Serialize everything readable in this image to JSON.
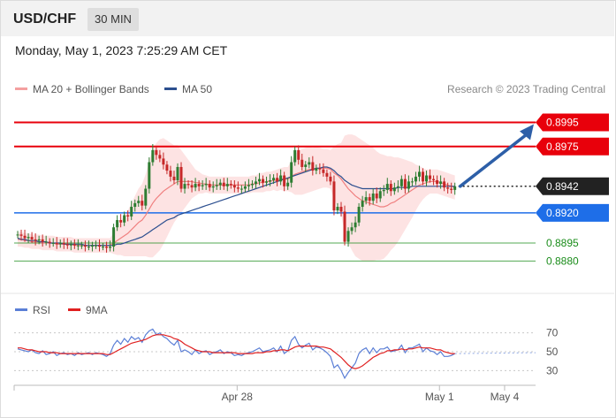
{
  "header": {
    "symbol": "USD/CHF",
    "interval": "30 MIN",
    "datetime": "Monday, May 1, 2023 7:25:29 AM CET"
  },
  "legend": {
    "ma20_label": "MA 20 + Bollinger Bands",
    "ma50_label": "MA 50",
    "credit": "Research © 2023 Trading Central",
    "rsi_label": "RSI",
    "rsi_ma_label": "9MA"
  },
  "colors": {
    "resistance": "#e8000b",
    "support": "#1e6ee8",
    "target_green": "#1a8c1a",
    "last_price": "#222222",
    "arrow": "#2d5fa8",
    "band_fill": "#fde0e0",
    "ma20": "#f08080",
    "ma50": "#2c4f8f",
    "rsi": "#5b7fd6",
    "rsi_ma": "#e02020",
    "candle_up": "#2e7d32",
    "candle_down": "#c62828"
  },
  "chart_data": {
    "type": "candlestick",
    "levels": [
      {
        "name": "resistance-2",
        "value": 0.8995,
        "label": "0.8995",
        "style": "red-box"
      },
      {
        "name": "resistance-1",
        "value": 0.8975,
        "label": "0.8975",
        "style": "red-box"
      },
      {
        "name": "last-price",
        "value": 0.8942,
        "label": "0.8942",
        "style": "black-box"
      },
      {
        "name": "pivot",
        "value": 0.892,
        "label": "0.8920",
        "style": "blue-box"
      },
      {
        "name": "support-1",
        "value": 0.8895,
        "label": "0.8895",
        "style": "green-text"
      },
      {
        "name": "support-2",
        "value": 0.888,
        "label": "0.8880",
        "style": "green-text"
      }
    ],
    "price_ylim": [
      0.8862,
      0.901
    ],
    "x_labels": [
      {
        "label": "Apr 28",
        "index": 64
      },
      {
        "label": "May 1",
        "index": 123
      },
      {
        "label": "May 4",
        "index": 142
      }
    ],
    "x_range": [
      0,
      150
    ],
    "close": [
      0.8902,
      0.8901,
      0.8899,
      0.89,
      0.8898,
      0.8897,
      0.8898,
      0.8896,
      0.8896,
      0.8895,
      0.8895,
      0.8894,
      0.8895,
      0.8894,
      0.8893,
      0.8894,
      0.8893,
      0.8893,
      0.8893,
      0.8892,
      0.8892,
      0.8893,
      0.8893,
      0.8892,
      0.8892,
      0.8891,
      0.8892,
      0.8908,
      0.8914,
      0.8912,
      0.8918,
      0.8917,
      0.8925,
      0.8928,
      0.893,
      0.8926,
      0.894,
      0.8962,
      0.8972,
      0.8968,
      0.8965,
      0.896,
      0.8955,
      0.895,
      0.8947,
      0.8958,
      0.894,
      0.8944,
      0.8943,
      0.8941,
      0.8944,
      0.8942,
      0.8943,
      0.8944,
      0.8941,
      0.8942,
      0.8943,
      0.8945,
      0.8942,
      0.8944,
      0.8943,
      0.8941,
      0.894,
      0.894,
      0.8942,
      0.8943,
      0.8944,
      0.8946,
      0.8948,
      0.8945,
      0.8946,
      0.8947,
      0.8949,
      0.8946,
      0.8951,
      0.8942,
      0.8945,
      0.8962,
      0.8972,
      0.8964,
      0.8958,
      0.896,
      0.8962,
      0.8955,
      0.8957,
      0.8956,
      0.8953,
      0.895,
      0.8946,
      0.8922,
      0.8925,
      0.8921,
      0.8896,
      0.8905,
      0.8908,
      0.8912,
      0.8925,
      0.893,
      0.8933,
      0.893,
      0.8936,
      0.8932,
      0.8938,
      0.8939,
      0.8944,
      0.8938,
      0.8941,
      0.8942,
      0.8948,
      0.894,
      0.8946,
      0.8946,
      0.895,
      0.8954,
      0.8946,
      0.8951,
      0.8948,
      0.8947,
      0.8944,
      0.8946,
      0.8941,
      0.894,
      0.8939,
      0.8942
    ],
    "ma20": [
      0.8898,
      0.8898,
      0.8897,
      0.8897,
      0.8896,
      0.8896,
      0.8896,
      0.8895,
      0.8895,
      0.8895,
      0.8895,
      0.8894,
      0.8894,
      0.8894,
      0.8894,
      0.8894,
      0.8893,
      0.8893,
      0.8893,
      0.8893,
      0.8893,
      0.8893,
      0.8893,
      0.8893,
      0.8893,
      0.8893,
      0.8893,
      0.8895,
      0.8897,
      0.8899,
      0.8901,
      0.8903,
      0.8906,
      0.8909,
      0.8912,
      0.8914,
      0.8918,
      0.8923,
      0.8928,
      0.8932,
      0.8935,
      0.8938,
      0.894,
      0.8942,
      0.8944,
      0.8946,
      0.8946,
      0.8946,
      0.8946,
      0.8946,
      0.8945,
      0.8945,
      0.8944,
      0.8944,
      0.8943,
      0.8943,
      0.8943,
      0.8943,
      0.8943,
      0.8943,
      0.8943,
      0.8943,
      0.8943,
      0.8943,
      0.8943,
      0.8943,
      0.8944,
      0.8944,
      0.8945,
      0.8945,
      0.8946,
      0.8946,
      0.8947,
      0.8947,
      0.8948,
      0.8948,
      0.8948,
      0.895,
      0.8952,
      0.8953,
      0.8954,
      0.8955,
      0.8956,
      0.8956,
      0.8957,
      0.8957,
      0.8957,
      0.8957,
      0.8956,
      0.8953,
      0.8951,
      0.8948,
      0.8944,
      0.894,
      0.8937,
      0.8934,
      0.8932,
      0.893,
      0.8929,
      0.8928,
      0.8927,
      0.8926,
      0.8925,
      0.8925,
      0.8926,
      0.8928,
      0.8929,
      0.8931,
      0.8933,
      0.8935,
      0.8937,
      0.8939,
      0.8941,
      0.8943,
      0.8944,
      0.8945,
      0.8946,
      0.8946,
      0.8946,
      0.8945,
      0.8944,
      0.8943,
      0.8942,
      0.8941
    ],
    "band_half_width": [
      0.0006,
      0.0006,
      0.0006,
      0.0006,
      0.0006,
      0.0006,
      0.0006,
      0.0006,
      0.0006,
      0.0006,
      0.0006,
      0.0006,
      0.0006,
      0.0006,
      0.0006,
      0.0006,
      0.0006,
      0.0006,
      0.0006,
      0.0006,
      0.0006,
      0.0006,
      0.0006,
      0.0006,
      0.0006,
      0.0006,
      0.0006,
      0.0009,
      0.0012,
      0.0014,
      0.0017,
      0.0019,
      0.0022,
      0.0025,
      0.0028,
      0.003,
      0.0034,
      0.004,
      0.0045,
      0.0046,
      0.0046,
      0.0044,
      0.004,
      0.0036,
      0.0032,
      0.003,
      0.0026,
      0.0022,
      0.0018,
      0.0014,
      0.0011,
      0.0009,
      0.0008,
      0.0007,
      0.0007,
      0.0007,
      0.0007,
      0.0007,
      0.0007,
      0.0007,
      0.0007,
      0.0007,
      0.0007,
      0.0007,
      0.0007,
      0.0007,
      0.0007,
      0.0007,
      0.0008,
      0.0008,
      0.0008,
      0.0008,
      0.0008,
      0.0009,
      0.0009,
      0.001,
      0.001,
      0.0013,
      0.0017,
      0.0018,
      0.0019,
      0.0019,
      0.0019,
      0.0018,
      0.0018,
      0.0017,
      0.0016,
      0.0016,
      0.0016,
      0.0022,
      0.0026,
      0.003,
      0.004,
      0.0045,
      0.0048,
      0.005,
      0.005,
      0.005,
      0.0049,
      0.0048,
      0.0047,
      0.0045,
      0.0044,
      0.0043,
      0.0041,
      0.0039,
      0.0037,
      0.0035,
      0.0032,
      0.0029,
      0.0026,
      0.0023,
      0.0019,
      0.0016,
      0.0013,
      0.0011,
      0.001,
      0.001,
      0.001,
      0.001,
      0.001,
      0.001,
      0.001,
      0.001
    ],
    "ma50": [
      0.8899,
      0.8898,
      0.8898,
      0.8897,
      0.8897,
      0.8897,
      0.8896,
      0.8896,
      0.8896,
      0.8895,
      0.8895,
      0.8895,
      0.8895,
      0.8894,
      0.8894,
      0.8894,
      0.8894,
      0.8894,
      0.8894,
      0.8893,
      0.8893,
      0.8893,
      0.8893,
      0.8893,
      0.8893,
      0.8893,
      0.8893,
      0.8893,
      0.8894,
      0.8894,
      0.8895,
      0.8896,
      0.8897,
      0.8898,
      0.8899,
      0.89,
      0.8902,
      0.8904,
      0.8906,
      0.8908,
      0.891,
      0.8912,
      0.8914,
      0.8915,
      0.8916,
      0.8918,
      0.8919,
      0.892,
      0.8921,
      0.8922,
      0.8923,
      0.8924,
      0.8925,
      0.8926,
      0.8927,
      0.8928,
      0.8929,
      0.893,
      0.8931,
      0.8932,
      0.8933,
      0.8934,
      0.8935,
      0.8936,
      0.8937,
      0.8938,
      0.8939,
      0.894,
      0.8941,
      0.8942,
      0.8943,
      0.8944,
      0.8945,
      0.8946,
      0.8947,
      0.8948,
      0.8949,
      0.895,
      0.8951,
      0.8952,
      0.8953,
      0.8954,
      0.8955,
      0.8956,
      0.8957,
      0.8957,
      0.8958,
      0.8958,
      0.8957,
      0.8955,
      0.8952,
      0.895,
      0.8947,
      0.8945,
      0.8943,
      0.8942,
      0.8941,
      0.894,
      0.894,
      0.894,
      0.894,
      0.894,
      0.894,
      0.894,
      0.894,
      0.894,
      0.894,
      0.8941,
      0.8941,
      0.8941,
      0.8941,
      0.8942,
      0.8942,
      0.8942,
      0.8942,
      0.8942,
      0.8942,
      0.8942,
      0.8942,
      0.8942,
      0.8942,
      0.8942,
      0.8942,
      0.8942
    ],
    "rsi": {
      "ticks": [
        70,
        50,
        30
      ],
      "ylim": [
        20,
        80
      ],
      "values": [
        53,
        52,
        51,
        50,
        52,
        49,
        48,
        51,
        47,
        48,
        50,
        46,
        48,
        49,
        47,
        48,
        46,
        49,
        47,
        48,
        49,
        47,
        49,
        48,
        47,
        45,
        48,
        57,
        62,
        58,
        64,
        60,
        66,
        63,
        65,
        60,
        68,
        72,
        74,
        68,
        70,
        66,
        64,
        60,
        57,
        62,
        50,
        52,
        50,
        47,
        52,
        48,
        50,
        51,
        47,
        49,
        50,
        52,
        48,
        50,
        49,
        46,
        47,
        46,
        48,
        49,
        50,
        52,
        54,
        50,
        51,
        52,
        54,
        50,
        56,
        48,
        51,
        62,
        66,
        58,
        54,
        57,
        59,
        52,
        55,
        54,
        52,
        49,
        45,
        33,
        36,
        30,
        22,
        28,
        33,
        38,
        48,
        52,
        54,
        48,
        54,
        49,
        53,
        53,
        55,
        50,
        51,
        52,
        57,
        49,
        54,
        54,
        56,
        58,
        50,
        54,
        51,
        50,
        47,
        50,
        45,
        45,
        46,
        48
      ],
      "ma9": [
        54,
        54,
        53,
        52,
        52,
        51,
        50,
        50,
        50,
        49,
        49,
        49,
        48,
        48,
        48,
        48,
        48,
        48,
        48,
        48,
        48,
        48,
        48,
        48,
        48,
        47,
        47,
        49,
        51,
        53,
        55,
        57,
        59,
        60,
        61,
        62,
        63,
        65,
        67,
        68,
        68,
        68,
        67,
        66,
        64,
        63,
        61,
        58,
        56,
        54,
        52,
        51,
        50,
        50,
        50,
        49,
        49,
        49,
        49,
        49,
        49,
        49,
        48,
        48,
        48,
        48,
        48,
        49,
        49,
        49,
        50,
        50,
        51,
        51,
        52,
        52,
        51,
        53,
        55,
        56,
        56,
        56,
        56,
        56,
        56,
        55,
        55,
        54,
        53,
        50,
        47,
        44,
        40,
        36,
        33,
        32,
        33,
        35,
        38,
        41,
        44,
        46,
        48,
        49,
        51,
        51,
        52,
        52,
        53,
        52,
        53,
        53,
        54,
        55,
        54,
        54,
        54,
        53,
        52,
        52,
        50,
        49,
        48,
        48
      ]
    },
    "price_lines": {
      "ma20_label": "MA 20 + Bollinger Bands",
      "ma50_label": "MA 50"
    }
  }
}
